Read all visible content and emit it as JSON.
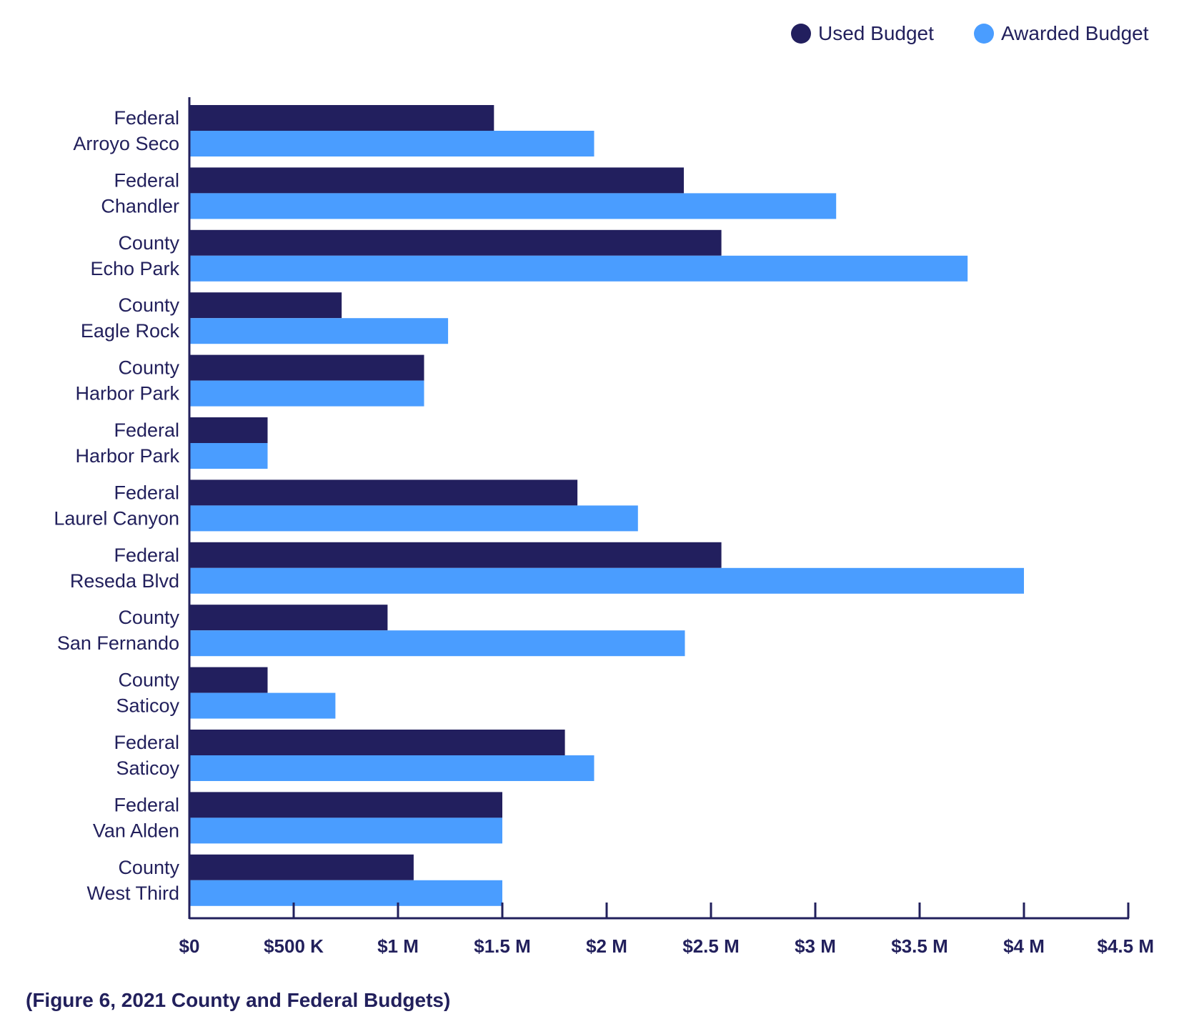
{
  "colors": {
    "used": "#221f5e",
    "awarded": "#4a9dff",
    "axis": "#22205c",
    "text": "#22205c"
  },
  "legend": {
    "placement": "top-right",
    "items": [
      {
        "label": "Used Budget",
        "color": "#221f5e"
      },
      {
        "label": "Awarded Budget",
        "color": "#4a9dff"
      }
    ]
  },
  "caption": "(Figure 6, 2021 County and Federal Budgets)",
  "chart_data": {
    "type": "bar",
    "orientation": "horizontal",
    "categories": [
      [
        "Federal",
        "Arroyo Seco"
      ],
      [
        "Federal",
        "Chandler"
      ],
      [
        "County",
        "Echo Park"
      ],
      [
        "County",
        "Eagle Rock"
      ],
      [
        "County",
        "Harbor Park"
      ],
      [
        "Federal",
        "Harbor Park"
      ],
      [
        "Federal",
        "Laurel Canyon"
      ],
      [
        "Federal",
        "Reseda Blvd"
      ],
      [
        "County",
        "San Fernando"
      ],
      [
        "County",
        "Saticoy"
      ],
      [
        "Federal",
        "Saticoy"
      ],
      [
        "Federal",
        "Van Alden"
      ],
      [
        "County",
        "West Third"
      ]
    ],
    "series": [
      {
        "name": "Used Budget",
        "color": "#221f5e",
        "values": [
          1460000,
          2370000,
          2550000,
          730000,
          1125000,
          375000,
          1860000,
          2550000,
          950000,
          375000,
          1800000,
          1500000,
          1075000
        ]
      },
      {
        "name": "Awarded Budget",
        "color": "#4a9dff",
        "values": [
          1940000,
          3100000,
          3730000,
          1240000,
          1125000,
          375000,
          2150000,
          4000000,
          2375000,
          700000,
          1940000,
          1500000,
          1500000
        ]
      }
    ],
    "xlim": [
      0,
      4500000
    ],
    "xticks": [
      0,
      500000,
      1000000,
      1500000,
      2000000,
      2500000,
      3000000,
      3500000,
      4000000,
      4500000
    ],
    "xtick_labels": [
      "$0",
      "$500 K",
      "$1 M",
      "$1.5 M",
      "$2 M",
      "$2.5 M",
      "$3 M",
      "$3.5 M",
      "$4 M",
      "$4.5 M"
    ],
    "grid": false
  }
}
